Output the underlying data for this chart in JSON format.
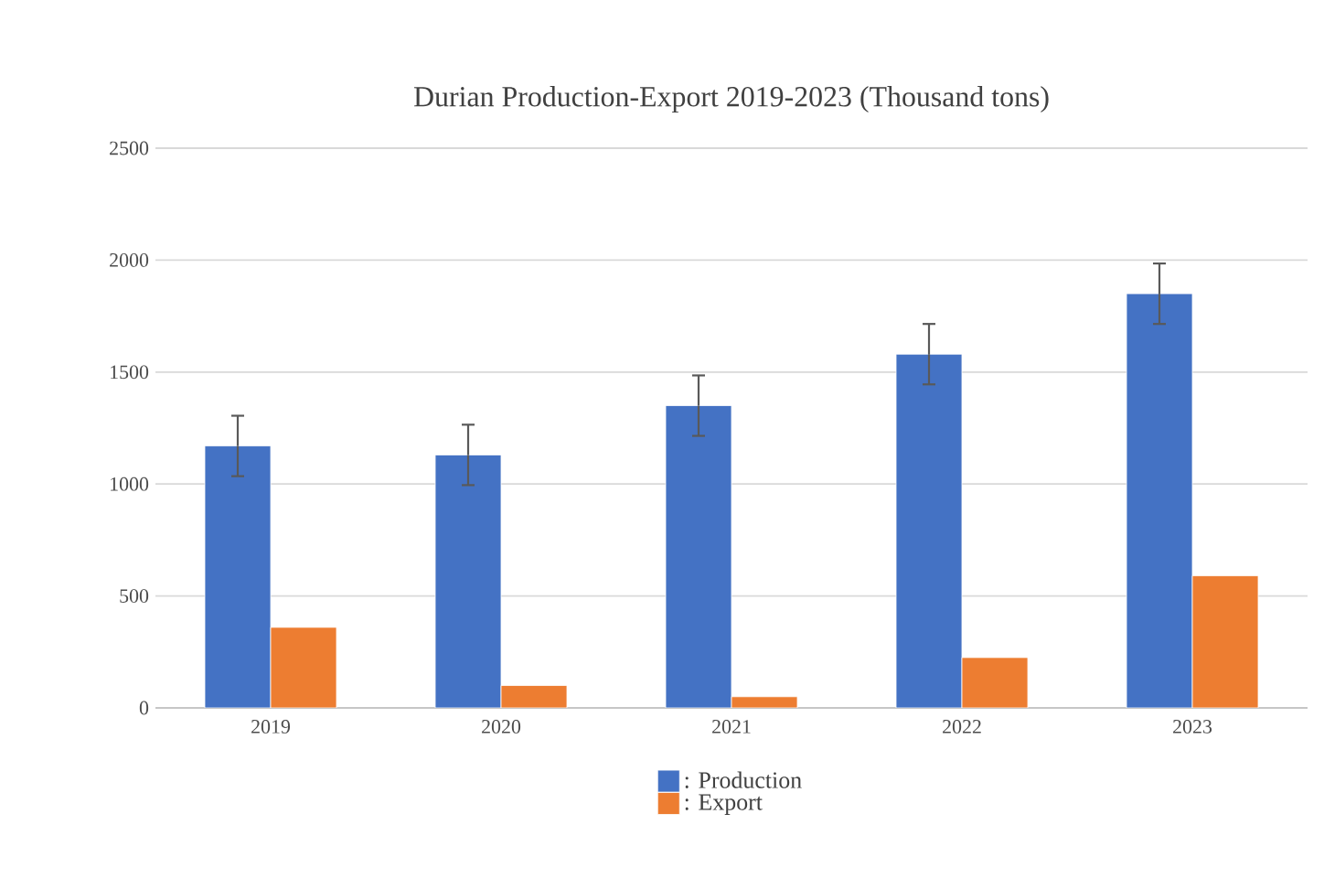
{
  "chart_data": {
    "type": "bar",
    "title": "Durian Production-Export 2019-2023  (Thousand tons)",
    "categories": [
      "2019",
      "2020",
      "2021",
      "2022",
      "2023"
    ],
    "series": [
      {
        "name": ": Production",
        "color": "#4472c4",
        "values": [
          1170,
          1130,
          1350,
          1580,
          1850
        ],
        "errors": [
          135,
          135,
          135,
          135,
          135
        ]
      },
      {
        "name": ": Export",
        "color": "#ed7d31",
        "values": [
          360,
          100,
          50,
          225,
          590
        ]
      }
    ],
    "ylim": [
      0,
      2500
    ],
    "yticks": [
      0,
      500,
      1000,
      1500,
      2000,
      2500
    ],
    "grid": "y",
    "legend": "bottom"
  }
}
